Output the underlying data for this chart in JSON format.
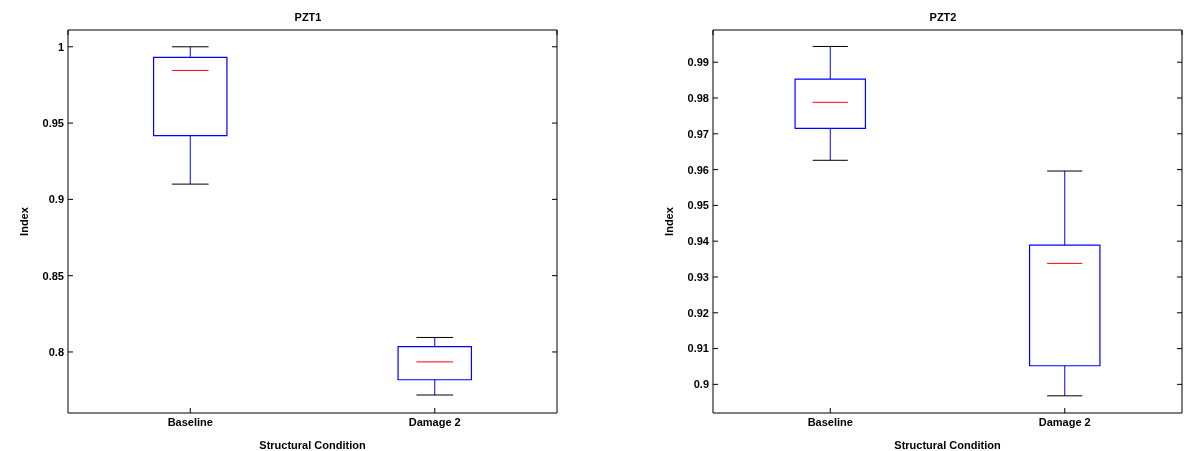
{
  "chart_data": [
    {
      "type": "box",
      "title": "PZT1",
      "xlabel": "Structural Condition",
      "ylabel": "Index",
      "categories": [
        "Baseline",
        "Damage 2"
      ],
      "ylim": [
        0.76,
        1.011
      ],
      "yticks": [
        {
          "value": 0.8,
          "label": "0.8"
        },
        {
          "value": 0.85,
          "label": "0.85"
        },
        {
          "value": 0.9,
          "label": "0.9"
        },
        {
          "value": 0.95,
          "label": "0.95"
        },
        {
          "value": 1,
          "label": "1"
        }
      ],
      "grid": false,
      "series": [
        {
          "color": "#0000ff",
          "boxes": [
            {
              "low": 0.91,
              "q1": 0.9418,
              "median": 0.9845,
              "q3": 0.993,
              "high": 1.0
            },
            {
              "low": 0.7718,
              "q1": 0.7818,
              "median": 0.7935,
              "q3": 0.8035,
              "high": 0.8095
            }
          ]
        }
      ]
    },
    {
      "type": "box",
      "title": "PZT2",
      "xlabel": "Structural Condition",
      "ylabel": "Index",
      "categories": [
        "Baseline",
        "Damage 2"
      ],
      "ylim": [
        0.892,
        0.999
      ],
      "yticks": [
        {
          "value": 0.9,
          "label": "0.9"
        },
        {
          "value": 0.91,
          "label": "0.91"
        },
        {
          "value": 0.92,
          "label": "0.92"
        },
        {
          "value": 0.93,
          "label": "0.93"
        },
        {
          "value": 0.94,
          "label": "0.94"
        },
        {
          "value": 0.95,
          "label": "0.95"
        },
        {
          "value": 0.96,
          "label": "0.96"
        },
        {
          "value": 0.97,
          "label": "0.97"
        },
        {
          "value": 0.98,
          "label": "0.98"
        },
        {
          "value": 0.99,
          "label": "0.99"
        }
      ],
      "grid": false,
      "series": [
        {
          "color": "#0000ff",
          "boxes": [
            {
              "low": 0.9626,
              "q1": 0.9715,
              "median": 0.9788,
              "q3": 0.9853,
              "high": 0.9944
            },
            {
              "low": 0.8968,
              "q1": 0.9052,
              "median": 0.9338,
              "q3": 0.9389,
              "high": 0.9596
            }
          ]
        }
      ]
    }
  ]
}
